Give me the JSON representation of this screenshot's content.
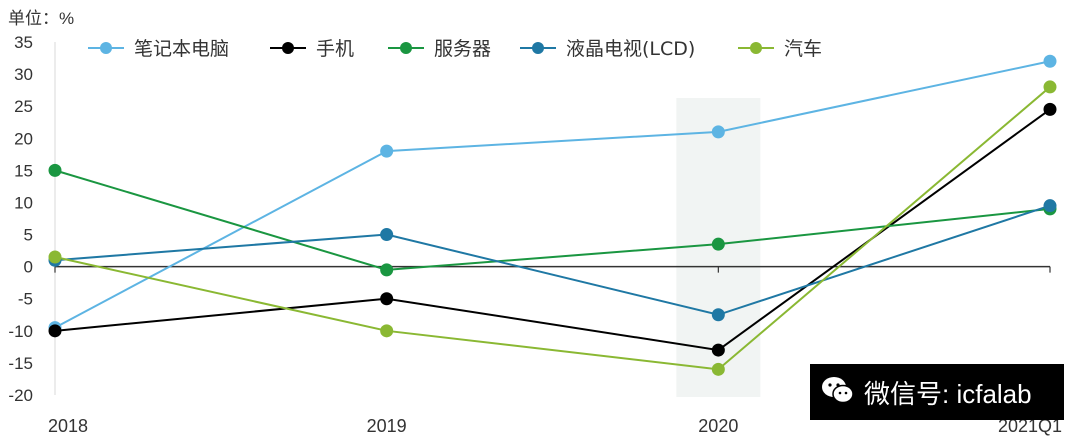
{
  "chart_data": {
    "type": "line",
    "unit_label": "单位：%",
    "categories": [
      "2018",
      "2019",
      "2020",
      "2021Q1"
    ],
    "ylim": [
      -20,
      35
    ],
    "yticks": [
      -20,
      -15,
      -10,
      -5,
      0,
      5,
      10,
      15,
      20,
      25,
      30,
      35
    ],
    "grid": false,
    "legend_position": "top",
    "highlight_category": "2020",
    "series": [
      {
        "name": "笔记本电脑",
        "color": "#5db4e3",
        "values": [
          -9.5,
          18,
          21,
          32
        ]
      },
      {
        "name": "手机",
        "color": "#000000",
        "values": [
          -10,
          -5,
          -13,
          24.5
        ]
      },
      {
        "name": "服务器",
        "color": "#1a9641",
        "values": [
          15,
          -0.5,
          3.5,
          9
        ]
      },
      {
        "name": "液晶电视(LCD)",
        "color": "#1f78a4",
        "values": [
          1,
          5,
          -7.5,
          9.5
        ]
      },
      {
        "name": "汽车",
        "color": "#8ab833",
        "values": [
          1.5,
          -10,
          -16,
          28
        ]
      }
    ]
  },
  "watermark": {
    "text": "微信号: icfalab",
    "icon": "wechat-icon"
  }
}
